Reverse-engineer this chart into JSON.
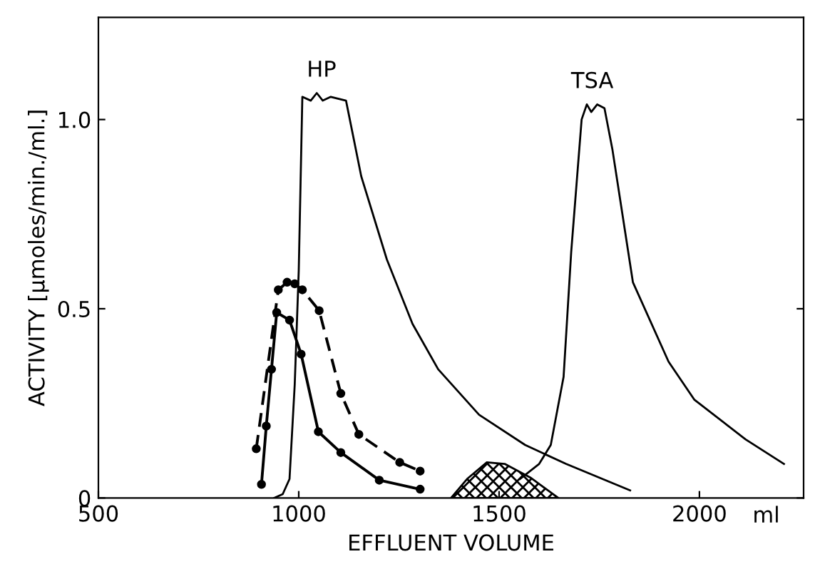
{
  "chart_data": {
    "type": "line",
    "xlabel": "EFFLUENT VOLUME",
    "ylabel": "ACTIVITY [μmoles/min./ml.]",
    "xlim": [
      500,
      2260
    ],
    "ylim": [
      0,
      1.27
    ],
    "xticks": [
      500,
      1000,
      1500,
      2000
    ],
    "yticks": [
      {
        "value": 0,
        "label": "0"
      },
      0.5,
      {
        "value": 1.0,
        "label": "1.0"
      }
    ],
    "grid": false,
    "legend": false,
    "annotations": [
      "HP",
      "TSA",
      "ml"
    ],
    "series": [
      {
        "color": "#000000",
        "marker": "none",
        "line_style": "solid",
        "x": [
          939,
          960,
          977,
          990,
          1000,
          1009,
          1030,
          1045,
          1060,
          1080,
          1118,
          1156,
          1220,
          1284,
          1348,
          1450,
          1565,
          1667,
          1827
        ],
        "values": [
          0,
          0.01,
          0.05,
          0.3,
          0.6,
          1.06,
          1.05,
          1.07,
          1.05,
          1.06,
          1.05,
          0.85,
          0.63,
          0.46,
          0.34,
          0.22,
          0.14,
          0.09,
          0.02
        ]
      },
      {
        "color": "#000000",
        "marker": "none",
        "line_style": "solid",
        "x": [
          1552,
          1600,
          1629,
          1661,
          1680,
          1706,
          1719,
          1730,
          1745,
          1763,
          1783,
          1834,
          1923,
          1987,
          2115,
          2211
        ],
        "values": [
          0.05,
          0.09,
          0.14,
          0.32,
          0.65,
          1.0,
          1.04,
          1.02,
          1.04,
          1.03,
          0.92,
          0.57,
          0.36,
          0.26,
          0.155,
          0.09
        ]
      },
      {
        "type": "area",
        "color": "#000000",
        "x": [
          1380,
          1420,
          1469,
          1514,
          1578,
          1648
        ],
        "values": [
          0,
          0.05,
          0.094,
          0.09,
          0.054,
          0
        ]
      },
      {
        "color": "#000000",
        "marker": "circle",
        "line_style": "solid",
        "x": [
          907,
          919,
          932,
          945,
          977,
          1006,
          1049,
          1105,
          1201,
          1303
        ],
        "values": [
          0.036,
          0.19,
          0.34,
          0.49,
          0.47,
          0.38,
          0.175,
          0.12,
          0.047,
          0.023
        ]
      },
      {
        "color": "#000000",
        "marker": "circle",
        "line_style": "dashed",
        "x": [
          894,
          919,
          949,
          971,
          990,
          1009,
          1051,
          1105,
          1150,
          1252,
          1303
        ],
        "values": [
          0.13,
          null,
          0.55,
          0.57,
          0.566,
          0.55,
          0.495,
          0.276,
          0.168,
          0.094,
          0.071
        ]
      }
    ]
  }
}
